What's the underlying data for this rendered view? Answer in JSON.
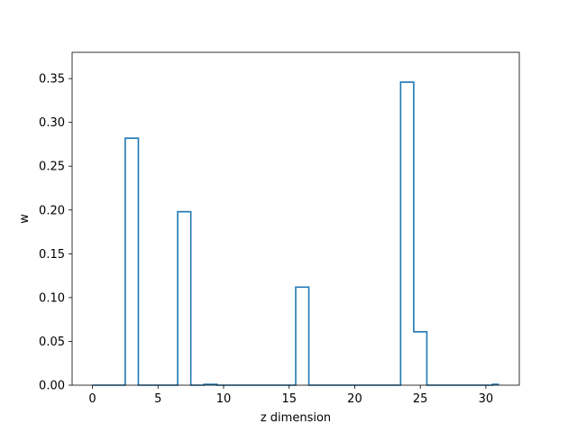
{
  "chart_data": {
    "type": "line",
    "drawstyle": "steps-mid",
    "title": "",
    "xlabel": "z dimension",
    "ylabel": "w",
    "xlim": [
      -1.55,
      32.55
    ],
    "ylim": [
      0.0,
      0.38
    ],
    "xticks": [
      0,
      5,
      10,
      15,
      20,
      25,
      30
    ],
    "yticks": [
      0.0,
      0.05,
      0.1,
      0.15,
      0.2,
      0.25,
      0.3,
      0.35
    ],
    "yticks_decimals": 2,
    "grid": false,
    "legend": "none",
    "series": [
      {
        "color": "#1f77b4",
        "x": [
          0,
          1,
          2,
          3,
          4,
          5,
          6,
          7,
          8,
          9,
          10,
          11,
          12,
          13,
          14,
          15,
          16,
          17,
          18,
          19,
          20,
          21,
          22,
          23,
          24,
          25,
          26,
          27,
          28,
          29,
          30,
          31
        ],
        "y": [
          0,
          0,
          0,
          0.282,
          0,
          0,
          0,
          0.198,
          0,
          0.001,
          0,
          0,
          0,
          0,
          0,
          0,
          0.112,
          0,
          0,
          0,
          0,
          0,
          0,
          0,
          0.346,
          0.061,
          0,
          0,
          0,
          0,
          0,
          0.001
        ]
      }
    ]
  }
}
